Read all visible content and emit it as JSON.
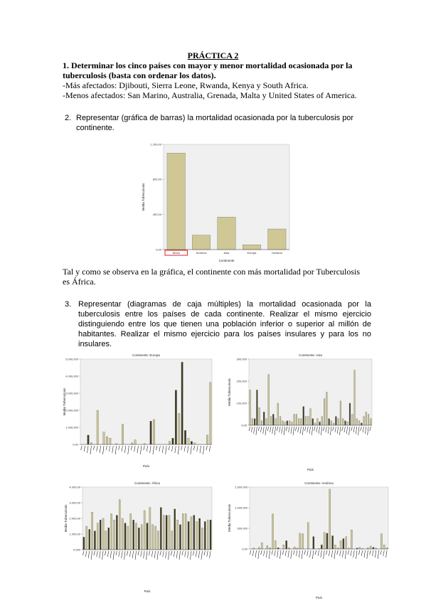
{
  "title": "PRÁCTICA 2",
  "q1": {
    "heading": "1. Determinar los cinco países con mayor y menor mortalidad ocasionada por la tuberculosis (basta con ordenar los datos).",
    "most": "-Más afectados: Djibouti, Sierra Leone, Rwanda, Kenya y South Africa.",
    "least": "-Menos afectados: San Marino, Australia, Grenada, Malta y United States of America."
  },
  "q2": {
    "number": "2.",
    "text": "Representar (gráfica de barras) la mortalidad ocasionada por la tuberculosis por continente.",
    "conclusion": "Tal y como se observa en la gráfica, el continente con más mortalidad por Tuberculosis es África."
  },
  "q3": {
    "number": "3.",
    "text": "Representar (diagramas de caja múltiples) la mortalidad ocasionada por la tuberculosis entre los países de cada continente. Realizar el mismo ejercicio distinguiendo entre los que tienen una población inferior o superior al millón de habitantes. Realizar el mismo ejercicio para los países insulares y para los no insulares."
  },
  "colors": {
    "bar_fill": "#cfc895",
    "bar_dark": "#3d3a1e",
    "plot_bg": "#f0f0f0",
    "highlight": "#e02020"
  },
  "chart_data": [
    {
      "type": "bar",
      "categories": [
        "África",
        "América",
        "Asia",
        "Europa",
        "Oceanía"
      ],
      "values": [
        1100,
        165,
        370,
        55,
        235
      ],
      "ylabel": "Media Tuberculosis",
      "xlabel": "Continente",
      "yticks": [
        "0,00",
        "400,00",
        "800,00",
        "1.200,00"
      ],
      "ylim": [
        0,
        1200
      ],
      "highlight_category": "África"
    },
    {
      "type": "bar",
      "title": "Continente: Europa",
      "xlabel": "País",
      "ylabel": "Media Tuberculosis",
      "yticks": [
        "0,00",
        "1.000,000",
        "2.000,000",
        "3.000,000",
        "4.000,000",
        "5.000,000"
      ],
      "ylim": [
        0,
        5500
      ],
      "values": [
        0,
        0,
        600,
        100,
        0,
        2200,
        0,
        800,
        500,
        400,
        0,
        50,
        0,
        1300,
        0,
        0,
        100,
        300,
        0,
        0,
        50,
        0,
        1500,
        1600,
        0,
        0,
        0,
        0,
        200,
        400,
        3500,
        2000,
        5300,
        900,
        400,
        200,
        100,
        0,
        0,
        0,
        600,
        4000
      ],
      "dark": [
        false,
        false,
        true,
        false,
        false,
        false,
        false,
        false,
        false,
        false,
        false,
        false,
        false,
        false,
        false,
        false,
        false,
        false,
        false,
        false,
        false,
        false,
        true,
        false,
        false,
        false,
        false,
        false,
        false,
        true,
        true,
        false,
        true,
        true,
        false,
        true,
        false,
        false,
        false,
        false,
        false,
        false
      ]
    },
    {
      "type": "bar",
      "title": "Continente: Asia",
      "xlabel": "País",
      "ylabel": "Media Tuberculosis",
      "yticks": [
        "0,00",
        "100,000",
        "200,000",
        "300,000"
      ],
      "ylim": [
        0,
        300
      ],
      "values": [
        160,
        30,
        30,
        160,
        80,
        20,
        60,
        30,
        230,
        40,
        50,
        30,
        100,
        40,
        20,
        15,
        20,
        20,
        15,
        50,
        50,
        30,
        30,
        85,
        40,
        40,
        75,
        30,
        10,
        30,
        15,
        40,
        120,
        150,
        30,
        20,
        10,
        40,
        30,
        110,
        30,
        20,
        15,
        100,
        50,
        250,
        30,
        20,
        10,
        40,
        60,
        50,
        30
      ],
      "dark": [
        false,
        false,
        true,
        true,
        false,
        false,
        true,
        false,
        false,
        false,
        true,
        false,
        false,
        false,
        false,
        false,
        true,
        false,
        false,
        false,
        false,
        false,
        false,
        true,
        false,
        false,
        false,
        true,
        false,
        false,
        true,
        false,
        false,
        false,
        true,
        false,
        false,
        true,
        false,
        false,
        false,
        true,
        false,
        true,
        false,
        false,
        false,
        false,
        true,
        false,
        false,
        false,
        false
      ]
    },
    {
      "type": "bar",
      "title": "Continente: África",
      "xlabel": "País",
      "ylabel": "Media Tuberculosis",
      "yticks": [
        "0,000",
        "1.000,00",
        "2.000,00",
        "3.000,00",
        "4.000,00"
      ],
      "ylim": [
        0,
        4000
      ],
      "values": [
        800,
        1500,
        1300,
        2400,
        1200,
        1700,
        1900,
        2000,
        1200,
        1400,
        2300,
        1900,
        2200,
        3200,
        2000,
        1700,
        1500,
        2300,
        1900,
        1700,
        1400,
        1600,
        2500,
        1700,
        2700,
        1600,
        1500,
        1200,
        2700,
        2200,
        2200,
        2200,
        1200,
        2600,
        1900,
        1600,
        2300,
        2300,
        1800,
        2100,
        2200,
        1800,
        2000,
        1400,
        1800,
        1900,
        1900
      ],
      "dark": [
        true,
        false,
        true,
        false,
        true,
        false,
        true,
        false,
        false,
        true,
        false,
        false,
        true,
        false,
        false,
        true,
        false,
        false,
        true,
        false,
        true,
        false,
        false,
        true,
        false,
        false,
        false,
        false,
        true,
        false,
        true,
        false,
        false,
        true,
        false,
        true,
        false,
        false,
        true,
        false,
        true,
        false,
        true,
        false,
        true,
        false,
        true
      ]
    },
    {
      "type": "bar",
      "title": "Continente: América",
      "xlabel": "País",
      "ylabel": "Media Tuberculosis",
      "yticks": [
        "0,00",
        "500,000",
        "1.000,000",
        "1.500,000"
      ],
      "ylim": [
        0,
        1500
      ],
      "values": [
        0,
        20,
        0,
        40,
        150,
        0,
        80,
        30,
        850,
        200,
        30,
        0,
        100,
        200,
        30,
        0,
        50,
        20,
        380,
        370,
        0,
        640,
        0,
        300,
        0,
        10,
        100,
        400,
        380,
        1450,
        320,
        100,
        30,
        200,
        250,
        300,
        20,
        460,
        0,
        20,
        40,
        10,
        0,
        30,
        70,
        40,
        20,
        0,
        370,
        100,
        30
      ],
      "dark": [
        false,
        false,
        false,
        false,
        false,
        false,
        false,
        false,
        false,
        false,
        true,
        false,
        false,
        true,
        false,
        false,
        false,
        false,
        false,
        false,
        false,
        false,
        false,
        true,
        false,
        false,
        true,
        false,
        true,
        false,
        true,
        false,
        false,
        false,
        true,
        false,
        false,
        false,
        false,
        true,
        false,
        false,
        false,
        false,
        false,
        true,
        false,
        false,
        false,
        false,
        false
      ]
    }
  ]
}
